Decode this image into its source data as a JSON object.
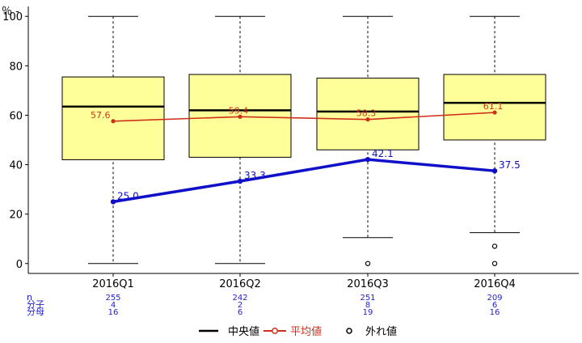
{
  "chart_data": {
    "type": "box",
    "y_unit_label": "％ -",
    "ylim": [
      -4,
      104
    ],
    "y_ticks": [
      0,
      20,
      40,
      60,
      80,
      100
    ],
    "categories": [
      "2016Q1",
      "2016Q2",
      "2016Q3",
      "2016Q4"
    ],
    "boxes": [
      {
        "min": 0,
        "q1": 42,
        "median": 63.5,
        "q3": 75.5,
        "max": 100
      },
      {
        "min": 0,
        "q1": 43,
        "median": 62,
        "q3": 76.5,
        "max": 100
      },
      {
        "min": 10.5,
        "q1": 46,
        "median": 61.5,
        "q3": 75,
        "max": 100
      },
      {
        "min": 12.5,
        "q1": 50,
        "median": 65,
        "q3": 76.5,
        "max": 100
      }
    ],
    "outliers": [
      {
        "category": "2016Q3",
        "values": [
          0
        ]
      },
      {
        "category": "2016Q4",
        "values": [
          7,
          0
        ]
      }
    ],
    "mean": {
      "name": "平均値",
      "values": [
        57.6,
        59.4,
        58.3,
        61.1
      ],
      "labels": [
        "57.6",
        "59.4",
        "58.3",
        "61.1"
      ],
      "color": "#d0301a"
    },
    "indicator": {
      "values": [
        25.0,
        33.3,
        42.1,
        37.5
      ],
      "labels": [
        "25.0",
        "33.3",
        "42.1",
        "37.5"
      ],
      "color": "#1010c8"
    },
    "stats_rows": {
      "labels": [
        "n",
        "分子",
        "分母"
      ],
      "values": [
        [
          "255",
          "242",
          "251",
          "209"
        ],
        [
          "4",
          "2",
          "8",
          "6"
        ],
        [
          "16",
          "6",
          "19",
          "16"
        ]
      ]
    },
    "legend": {
      "placement": "bottom-center",
      "items": [
        {
          "name": "中央値",
          "symbol": "line",
          "color": "#000000"
        },
        {
          "name": "平均値",
          "symbol": "line-dot",
          "color": "#d0301a"
        },
        {
          "name": "外れ値",
          "symbol": "circle",
          "color": "#000000"
        }
      ]
    },
    "colors": {
      "box_fill": "#ffff99",
      "box_stroke": "#000000",
      "whisker": "#000000"
    },
    "grid": false
  }
}
